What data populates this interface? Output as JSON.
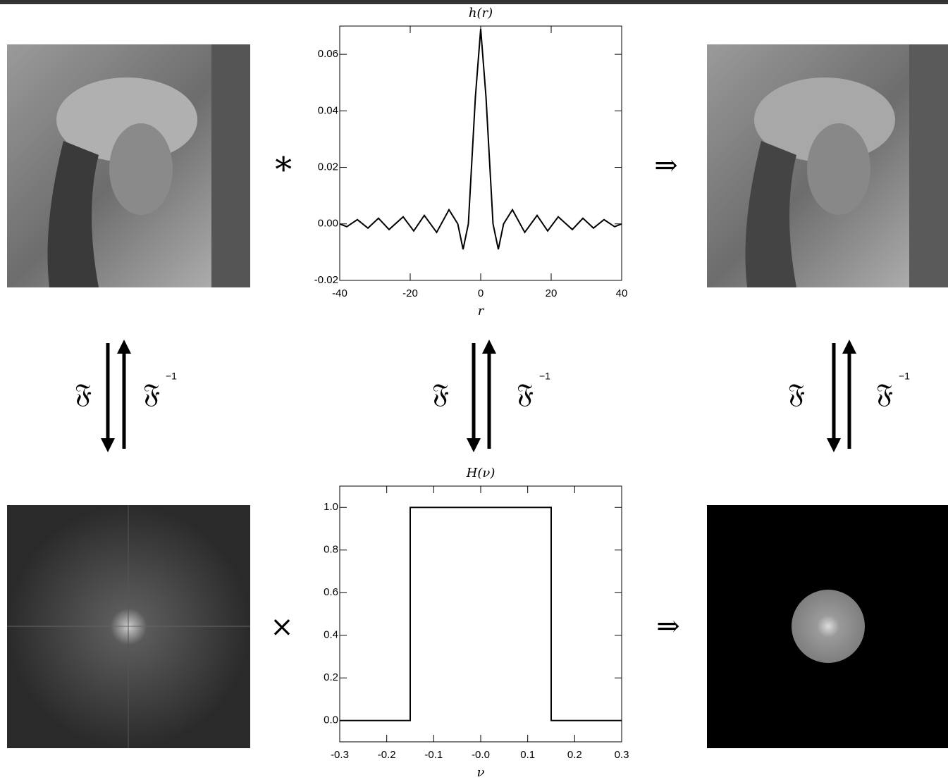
{
  "chart_data": [
    {
      "type": "line",
      "title": "h(r)",
      "xlabel": "r",
      "color": "#000000",
      "x": [
        -40,
        -38,
        -35,
        -32,
        -29,
        -26,
        -22,
        -19,
        -16,
        -12.5,
        -9,
        -6.5,
        -5,
        -3.5,
        -1.5,
        0,
        1.5,
        3.5,
        5,
        6.5,
        9,
        12.5,
        16,
        19,
        22,
        26,
        29,
        32,
        35,
        38,
        40
      ],
      "values": [
        0,
        -0.001,
        0.0015,
        -0.0015,
        0.002,
        -0.002,
        0.0025,
        -0.0025,
        0.003,
        -0.003,
        0.005,
        0,
        -0.009,
        0,
        0.045,
        0.069,
        0.045,
        0,
        -0.009,
        0,
        0.005,
        -0.003,
        0.003,
        -0.0025,
        0.0025,
        -0.002,
        0.002,
        -0.0015,
        0.0015,
        -0.001,
        0
      ],
      "xlim": [
        -40,
        40
      ],
      "xticks": [
        -40,
        -20,
        0,
        20,
        40
      ],
      "ylim": [
        -0.02,
        0.07
      ],
      "yticks": [
        {
          "value": -0.02,
          "label": "-0.02"
        },
        {
          "value": 0,
          "label": "0.00"
        },
        {
          "value": 0.02,
          "label": "0.02"
        },
        {
          "value": 0.04,
          "label": "0.04"
        },
        {
          "value": 0.06,
          "label": "0.06"
        }
      ]
    },
    {
      "type": "line",
      "title": "H(ν)",
      "xlabel": "ν",
      "color": "#000000",
      "x": [
        -0.3,
        -0.15,
        -0.15,
        0.15,
        0.15,
        0.3
      ],
      "values": [
        0,
        0,
        1,
        1,
        0,
        0
      ],
      "xlim": [
        -0.3,
        0.3
      ],
      "xticks": [
        {
          "value": -0.3,
          "label": "-0.3"
        },
        {
          "value": -0.2,
          "label": "-0.2"
        },
        {
          "value": -0.1,
          "label": "-0.1"
        },
        {
          "value": 0,
          "label": "-0.0"
        },
        {
          "value": 0.1,
          "label": "0.1"
        },
        {
          "value": 0.2,
          "label": "0.2"
        },
        {
          "value": 0.3,
          "label": "0.3"
        }
      ],
      "ylim": [
        -0.1,
        1.1
      ],
      "yticks": [
        {
          "value": 0,
          "label": "0.0"
        },
        {
          "value": 0.2,
          "label": "0.2"
        },
        {
          "value": 0.4,
          "label": "0.4"
        },
        {
          "value": 0.6,
          "label": "0.6"
        },
        {
          "value": 0.8,
          "label": "0.8"
        },
        {
          "value": 1,
          "label": "1.0"
        }
      ]
    }
  ],
  "operators": {
    "convolve": "∗",
    "implies_top": "⇒",
    "multiply": "×",
    "implies_bottom": "⇒"
  },
  "transforms": [
    {
      "forward": "𝔉",
      "inverse": "𝔉",
      "exponent": "−1"
    },
    {
      "forward": "𝔉",
      "inverse": "𝔉",
      "exponent": "−1"
    },
    {
      "forward": "𝔉",
      "inverse": "𝔉",
      "exponent": "−1"
    }
  ]
}
